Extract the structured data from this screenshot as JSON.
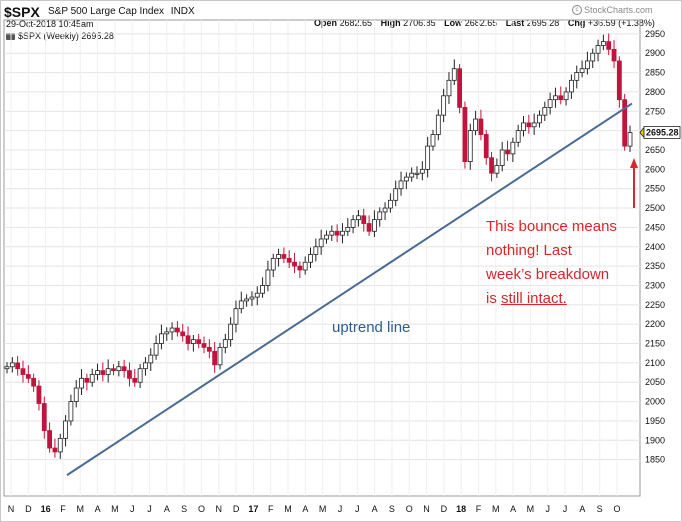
{
  "header": {
    "symbol": "$SPX",
    "name": "S&P 500 Large Cap Index",
    "exchange": "INDX",
    "datetime": "29-Oct-2018 10:45am",
    "legend": "$SPX (Weekly) 2695.28",
    "copyright": "StockCharts.com",
    "ohlc": {
      "open_label": "Open",
      "open": "2682.65",
      "high_label": "High",
      "high": "2706.85",
      "low_label": "Low",
      "low": "2682.65",
      "last_label": "Last",
      "last": "2695.28",
      "chg_label": "Chg",
      "chg": "+36.59 (+1.38%)"
    }
  },
  "annotations": {
    "trend_label": "uptrend line",
    "note_line1": "This bounce means",
    "note_line2": "nothing! Last",
    "note_line3": "week’s breakdown",
    "note_line4_pre": "is ",
    "note_line4_u": "still intact."
  },
  "chart_data": {
    "type": "candlestick",
    "series": [
      {
        "name": "$SPX (Weekly)"
      }
    ],
    "ylim": [
      1800,
      2960
    ],
    "y_ticks": [
      1850,
      1900,
      1950,
      2000,
      2050,
      2100,
      2150,
      2200,
      2250,
      2300,
      2350,
      2400,
      2450,
      2500,
      2550,
      2600,
      2650,
      2700,
      2750,
      2800,
      2850,
      2900,
      2950
    ],
    "x_tick_labels": [
      "N",
      "D",
      "16",
      "F",
      "M",
      "A",
      "M",
      "J",
      "J",
      "A",
      "S",
      "O",
      "N",
      "D",
      "17",
      "F",
      "M",
      "A",
      "M",
      "J",
      "J",
      "A",
      "S",
      "O",
      "N",
      "D",
      "18",
      "F",
      "M",
      "A",
      "M",
      "J",
      "J",
      "A",
      "S",
      "O"
    ],
    "bold_x_labels": [
      "16",
      "17",
      "18"
    ],
    "last_price": "2695.28",
    "colors": {
      "up": "#ffffff",
      "down": "#c0143c",
      "outline": "#222222",
      "trendline": "#4a6a94",
      "arrow": "#d9262b"
    },
    "close_path": [
      [
        0,
        2090
      ],
      [
        1,
        2100
      ],
      [
        2,
        2085
      ],
      [
        3,
        2070
      ],
      [
        4,
        2060
      ],
      [
        5,
        2040
      ],
      [
        6,
        1995
      ],
      [
        7,
        1925
      ],
      [
        8,
        1880
      ],
      [
        9,
        1870
      ],
      [
        10,
        1905
      ],
      [
        11,
        1950
      ],
      [
        12,
        2000
      ],
      [
        13,
        2035
      ],
      [
        14,
        2060
      ],
      [
        15,
        2050
      ],
      [
        16,
        2070
      ],
      [
        17,
        2080
      ],
      [
        18,
        2070
      ],
      [
        19,
        2085
      ],
      [
        20,
        2080
      ],
      [
        21,
        2090
      ],
      [
        22,
        2080
      ],
      [
        23,
        2060
      ],
      [
        24,
        2050
      ],
      [
        25,
        2085
      ],
      [
        26,
        2100
      ],
      [
        27,
        2120
      ],
      [
        28,
        2150
      ],
      [
        29,
        2175
      ],
      [
        30,
        2180
      ],
      [
        31,
        2190
      ],
      [
        32,
        2180
      ],
      [
        33,
        2170
      ],
      [
        34,
        2150
      ],
      [
        35,
        2160
      ],
      [
        36,
        2150
      ],
      [
        37,
        2140
      ],
      [
        38,
        2130
      ],
      [
        39,
        2095
      ],
      [
        40,
        2140
      ],
      [
        41,
        2160
      ],
      [
        42,
        2200
      ],
      [
        43,
        2240
      ],
      [
        44,
        2260
      ],
      [
        45,
        2265
      ],
      [
        46,
        2270
      ],
      [
        47,
        2280
      ],
      [
        48,
        2300
      ],
      [
        49,
        2340
      ],
      [
        50,
        2370
      ],
      [
        51,
        2380
      ],
      [
        52,
        2370
      ],
      [
        53,
        2360
      ],
      [
        54,
        2350
      ],
      [
        55,
        2340
      ],
      [
        56,
        2360
      ],
      [
        57,
        2380
      ],
      [
        58,
        2400
      ],
      [
        59,
        2420
      ],
      [
        60,
        2430
      ],
      [
        61,
        2440
      ],
      [
        62,
        2430
      ],
      [
        63,
        2440
      ],
      [
        64,
        2450
      ],
      [
        65,
        2470
      ],
      [
        66,
        2480
      ],
      [
        67,
        2460
      ],
      [
        68,
        2440
      ],
      [
        69,
        2470
      ],
      [
        70,
        2490
      ],
      [
        71,
        2500
      ],
      [
        72,
        2520
      ],
      [
        73,
        2550
      ],
      [
        74,
        2570
      ],
      [
        75,
        2580
      ],
      [
        76,
        2590
      ],
      [
        77,
        2590
      ],
      [
        78,
        2600
      ],
      [
        79,
        2660
      ],
      [
        80,
        2690
      ],
      [
        81,
        2740
      ],
      [
        82,
        2790
      ],
      [
        83,
        2830
      ],
      [
        84,
        2860
      ],
      [
        85,
        2760
      ],
      [
        86,
        2620
      ],
      [
        87,
        2700
      ],
      [
        88,
        2730
      ],
      [
        89,
        2690
      ],
      [
        90,
        2630
      ],
      [
        91,
        2590
      ],
      [
        92,
        2610
      ],
      [
        93,
        2650
      ],
      [
        94,
        2640
      ],
      [
        95,
        2670
      ],
      [
        96,
        2700
      ],
      [
        97,
        2720
      ],
      [
        98,
        2710
      ],
      [
        99,
        2720
      ],
      [
        100,
        2740
      ],
      [
        101,
        2760
      ],
      [
        102,
        2780
      ],
      [
        103,
        2790
      ],
      [
        104,
        2780
      ],
      [
        105,
        2800
      ],
      [
        106,
        2830
      ],
      [
        107,
        2850
      ],
      [
        108,
        2860
      ],
      [
        109,
        2880
      ],
      [
        110,
        2900
      ],
      [
        111,
        2920
      ],
      [
        112,
        2930
      ],
      [
        113,
        2910
      ],
      [
        114,
        2880
      ],
      [
        115,
        2780
      ],
      [
        116,
        2660
      ],
      [
        117,
        2695
      ]
    ],
    "trendline": [
      [
        0,
        1810
      ],
      [
        117,
        2770
      ]
    ]
  }
}
